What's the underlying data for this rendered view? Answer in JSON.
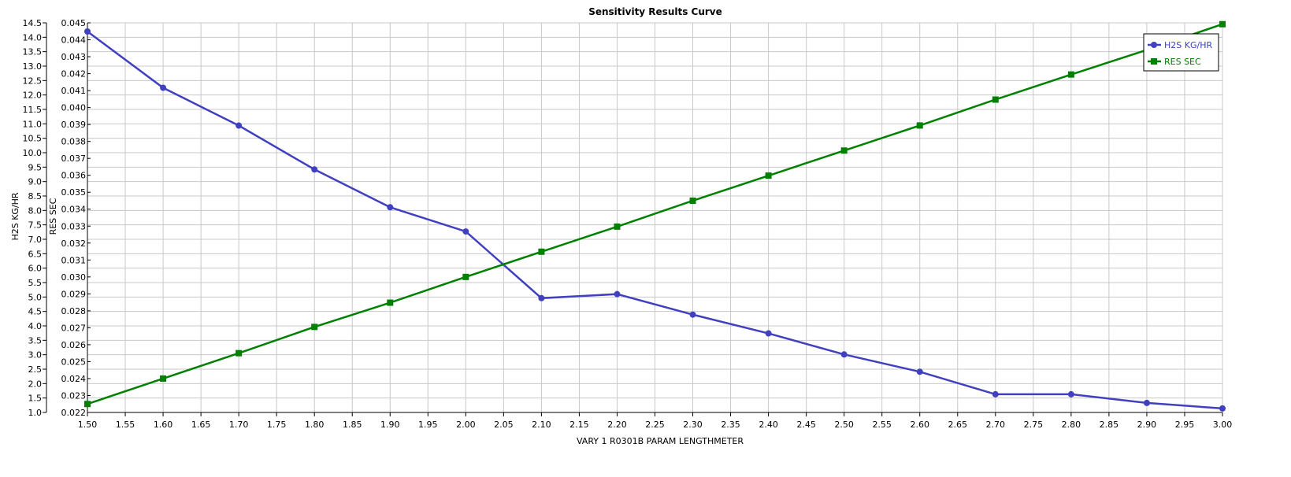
{
  "chart_data": {
    "type": "line",
    "title": "Sensitivity Results Curve",
    "xlabel": "VARY   1 R0301B PARAM LENGTHMETER",
    "ylabel_left": "H2S KG/HR",
    "ylabel_right_inner": "RES SEC",
    "xlim": [
      1.5,
      3.0
    ],
    "x_ticks": [
      "1.50",
      "1.55",
      "1.60",
      "1.65",
      "1.70",
      "1.75",
      "1.80",
      "1.85",
      "1.90",
      "1.95",
      "2.00",
      "2.05",
      "2.10",
      "2.15",
      "2.20",
      "2.25",
      "2.30",
      "2.35",
      "2.40",
      "2.45",
      "2.50",
      "2.55",
      "2.60",
      "2.65",
      "2.70",
      "2.75",
      "2.80",
      "2.85",
      "2.90",
      "2.95",
      "3.00"
    ],
    "y1lim": [
      1.0,
      14.5
    ],
    "y1_ticks": [
      "1.0",
      "1.5",
      "2.0",
      "2.5",
      "3.0",
      "3.5",
      "4.0",
      "4.5",
      "5.0",
      "5.5",
      "6.0",
      "6.5",
      "7.0",
      "7.5",
      "8.0",
      "8.5",
      "9.0",
      "9.5",
      "10.0",
      "10.5",
      "11.0",
      "11.5",
      "12.0",
      "12.5",
      "13.0",
      "13.5",
      "14.0",
      "14.5"
    ],
    "y2lim": [
      0.022,
      0.045
    ],
    "y2_ticks": [
      "0.022",
      "0.023",
      "0.024",
      "0.025",
      "0.026",
      "0.027",
      "0.028",
      "0.029",
      "0.030",
      "0.031",
      "0.032",
      "0.033",
      "0.034",
      "0.035",
      "0.036",
      "0.037",
      "0.038",
      "0.039",
      "0.040",
      "0.041",
      "0.042",
      "0.043",
      "0.044",
      "0.045"
    ],
    "grid": true,
    "legend_position": "top-right",
    "x": [
      1.5,
      1.6,
      1.7,
      1.8,
      1.9,
      2.0,
      2.1,
      2.2,
      2.3,
      2.4,
      2.5,
      2.6,
      2.7,
      2.8,
      2.9,
      3.0
    ],
    "series": [
      {
        "name": "H2S KG/HR",
        "axis": "left",
        "color": "#4040c0",
        "marker": "circle",
        "values": [
          14.2,
          12.25,
          10.94,
          9.42,
          8.11,
          7.27,
          4.96,
          5.1,
          4.39,
          3.74,
          3.01,
          2.41,
          1.63,
          1.63,
          1.33,
          1.14
        ]
      },
      {
        "name": "RES SEC",
        "axis": "right",
        "color": "#008000",
        "marker": "square",
        "values": [
          0.0225,
          0.024,
          0.0255,
          0.02705,
          0.02848,
          0.03,
          0.03149,
          0.03297,
          0.0345,
          0.03598,
          0.03746,
          0.03894,
          0.04047,
          0.04195,
          0.0434,
          0.04492
        ]
      }
    ]
  }
}
